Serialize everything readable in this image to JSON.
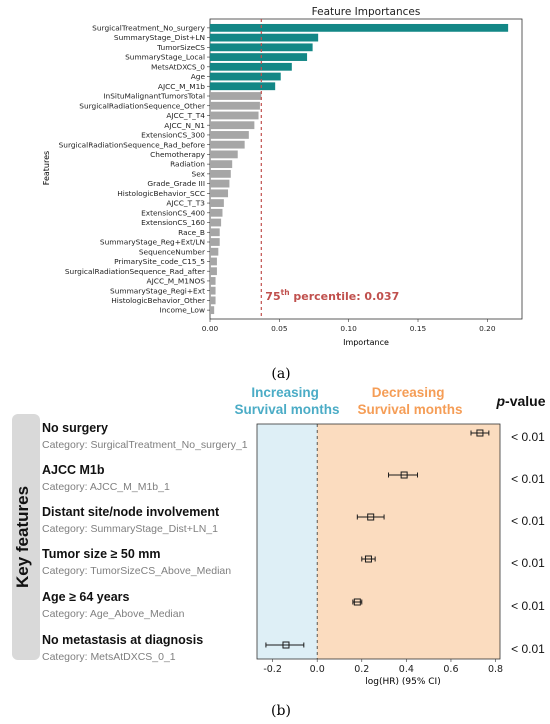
{
  "panel_labels": {
    "a": "(a)",
    "b": "(b)"
  },
  "chart_data": [
    {
      "type": "bar",
      "orientation": "horizontal",
      "title": "Feature Importances",
      "xlabel": "Importance",
      "ylabel": "Features",
      "xlim": [
        0,
        0.225
      ],
      "xticks": [
        "0.00",
        "0.05",
        "0.10",
        "0.15",
        "0.20"
      ],
      "grid": false,
      "categories": [
        "SurgicalTreatment_No_surgery",
        "SummaryStage_Dist+LN",
        "TumorSizeCS",
        "SummaryStage_Local",
        "MetsAtDXCS_0",
        "Age",
        "AJCC_M_M1b",
        "InSituMalignantTumorsTotal",
        "SurgicalRadiationSequence_Other",
        "AJCC_T_T4",
        "AJCC_N_N1",
        "ExtensionCS_300",
        "SurgicalRadiationSequence_Rad_before",
        "Chemotherapy",
        "Radiation",
        "Sex",
        "Grade_Grade III",
        "HistologicBehavior_SCC",
        "AJCC_T_T3",
        "ExtensionCS_400",
        "ExtensionCS_160",
        "Race_B",
        "SummaryStage_Reg+Ext/LN",
        "SequenceNumber",
        "PrimarySite_code_C15_5",
        "SurgicalRadiationSequence_Rad_after",
        "AJCC_M_M1NOS",
        "SummaryStage_Regi+Ext",
        "HistologicBehavior_Other",
        "Income_Low"
      ],
      "values": [
        0.215,
        0.078,
        0.074,
        0.07,
        0.059,
        0.051,
        0.047,
        0.037,
        0.036,
        0.035,
        0.032,
        0.028,
        0.025,
        0.02,
        0.016,
        0.015,
        0.014,
        0.013,
        0.01,
        0.009,
        0.008,
        0.007,
        0.007,
        0.006,
        0.005,
        0.005,
        0.004,
        0.004,
        0.004,
        0.003
      ],
      "highlight_count": 7,
      "colors": {
        "highlight": "#138786",
        "other": "#a6a6a6",
        "threshold": "#c0504d"
      },
      "threshold": {
        "value": 0.037,
        "label_sup": "th",
        "label_prefix": "75",
        "label_rest": " percentile: 0.037"
      }
    },
    {
      "type": "forest",
      "xlabel": "log(HR) (95% CI)",
      "xlim": [
        -0.27,
        0.82
      ],
      "xticks": [
        -0.2,
        0.0,
        0.2,
        0.4,
        0.6,
        0.8
      ],
      "xtick_labels": [
        "-0.2",
        "0.0",
        "0.2",
        "0.4",
        "0.6",
        "0.8"
      ],
      "region_left_label": [
        "Increasing",
        "Survival months"
      ],
      "region_right_label": [
        "Decreasing",
        "Survival months"
      ],
      "pvalue_header": "-value",
      "pvalue_header_italic": "p",
      "key_label": "Key features",
      "colors": {
        "left_region": "#deeff6",
        "right_region": "#fbdcbf",
        "left_text": "#4bacc6",
        "right_text": "#f59d56",
        "marker": "#1a1a1a"
      },
      "features": [
        {
          "name": "No surgery",
          "category": "Category: SurgicalTreatment_No_surgery_1",
          "estimate": 0.73,
          "ci": [
            0.69,
            0.77
          ],
          "p": "< 0.01"
        },
        {
          "name": "AJCC M1b",
          "category": "Category: AJCC_M_M1b_1",
          "estimate": 0.39,
          "ci": [
            0.32,
            0.45
          ],
          "p": "< 0.01"
        },
        {
          "name": "Distant site/node involvement",
          "category": "Category: SummaryStage_Dist+LN_1",
          "estimate": 0.24,
          "ci": [
            0.18,
            0.3
          ],
          "p": "< 0.01"
        },
        {
          "name": "Tumor size ≥  50 mm",
          "category": "Category: TumorSizeCS_Above_Median",
          "estimate": 0.23,
          "ci": [
            0.2,
            0.26
          ],
          "p": "< 0.01"
        },
        {
          "name": "Age ≥  64 years",
          "category": "Category: Age_Above_Median",
          "estimate": 0.18,
          "ci": [
            0.16,
            0.2
          ],
          "p": "< 0.01"
        },
        {
          "name": "No metastasis at diagnosis",
          "category": "Category: MetsAtDXCS_0_1",
          "estimate": -0.14,
          "ci": [
            -0.23,
            -0.06
          ],
          "p": "< 0.01"
        }
      ]
    }
  ]
}
